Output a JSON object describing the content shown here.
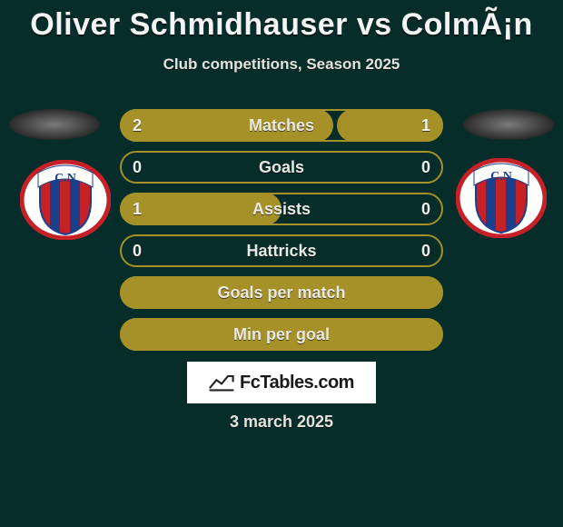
{
  "header": {
    "title": "Oliver Schmidhauser vs ColmÃ¡n",
    "subtitle": "Club competitions, Season 2025"
  },
  "colors": {
    "background": "#062d2a",
    "bar_outline": "#a59128",
    "bar_fill": "#a59128",
    "text": "#e9e9e4"
  },
  "crest": {
    "outer_stroke": "#c62127",
    "outer_fill": "#ffffff",
    "stripe_blue": "#1b3f8a",
    "stripe_red": "#c62127",
    "initials": "C.N",
    "initials_bg": "#ffffff"
  },
  "rows": [
    {
      "label": "Matches",
      "left": "2",
      "right": "1",
      "left_pct": 66,
      "right_pct": 33,
      "show_values": true
    },
    {
      "label": "Goals",
      "left": "0",
      "right": "0",
      "left_pct": 0,
      "right_pct": 0,
      "show_values": true
    },
    {
      "label": "Assists",
      "left": "1",
      "right": "0",
      "left_pct": 50,
      "right_pct": 0,
      "show_values": true
    },
    {
      "label": "Hattricks",
      "left": "0",
      "right": "0",
      "left_pct": 0,
      "right_pct": 0,
      "show_values": true
    },
    {
      "label": "Goals per match",
      "left": "",
      "right": "",
      "left_pct": 100,
      "right_pct": 0,
      "show_values": false
    },
    {
      "label": "Min per goal",
      "left": "",
      "right": "",
      "left_pct": 100,
      "right_pct": 0,
      "show_values": false
    }
  ],
  "branding": {
    "site": "FcTables.com"
  },
  "date": "3 march 2025"
}
